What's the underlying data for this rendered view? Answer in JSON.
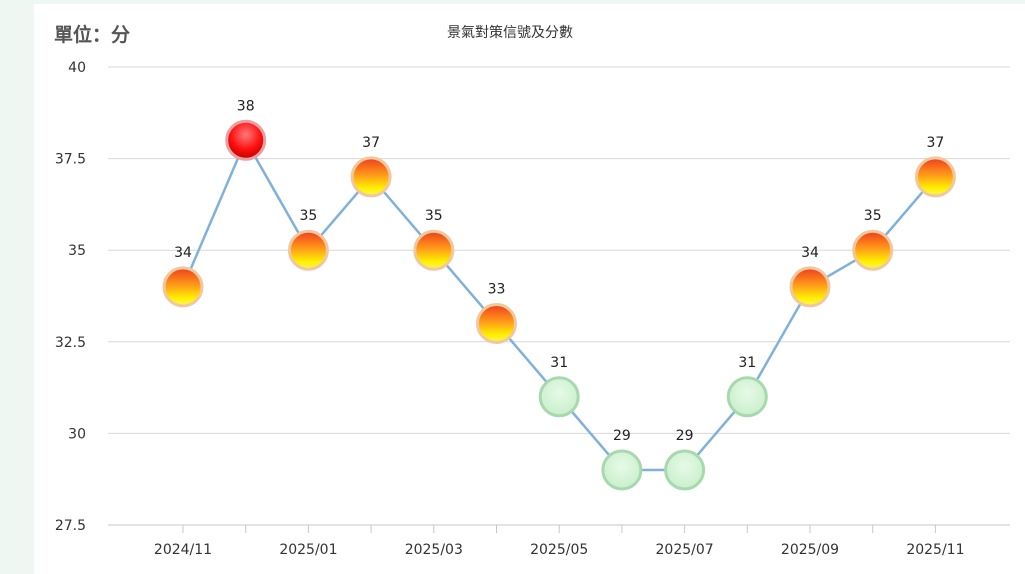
{
  "page": {
    "unit_label": "單位：分"
  },
  "chart_data": {
    "type": "line",
    "title": "景氣對策信號及分數",
    "xlabel": "",
    "ylabel": "",
    "x": [
      "2024/11",
      "2024/12",
      "2025/01",
      "2025/02",
      "2025/03",
      "2025/04",
      "2025/05",
      "2025/06",
      "2025/07",
      "2025/08",
      "2025/09",
      "2025/10",
      "2025/11"
    ],
    "x_tick_labels": [
      "2024/11",
      "",
      "2025/01",
      "",
      "2025/03",
      "",
      "2025/05",
      "",
      "2025/07",
      "",
      "2025/09",
      "",
      "2025/11"
    ],
    "series": [
      {
        "values": [
          34,
          38,
          35,
          37,
          35,
          33,
          31,
          29,
          29,
          31,
          34,
          35,
          37
        ],
        "signals": [
          "yellow-red",
          "red",
          "yellow-red",
          "yellow-red",
          "yellow-red",
          "yellow-red",
          "green",
          "green",
          "green",
          "green",
          "yellow-red",
          "yellow-red",
          "yellow-red"
        ]
      }
    ],
    "ylim": [
      27.5,
      40
    ],
    "yticks": [
      27.5,
      30,
      32.5,
      35,
      37.5,
      40
    ],
    "grid": true,
    "legend": "none",
    "colors": {
      "line": "#7fb1dc",
      "grid": "#d8d8d8",
      "red_light": "#ff6a6a",
      "red_dark": "#e00000",
      "yr_top": "#f05020",
      "yr_bottom": "#fff200",
      "green_fill": "#d2f3d4",
      "green_stroke": "#a8d8ad"
    }
  }
}
